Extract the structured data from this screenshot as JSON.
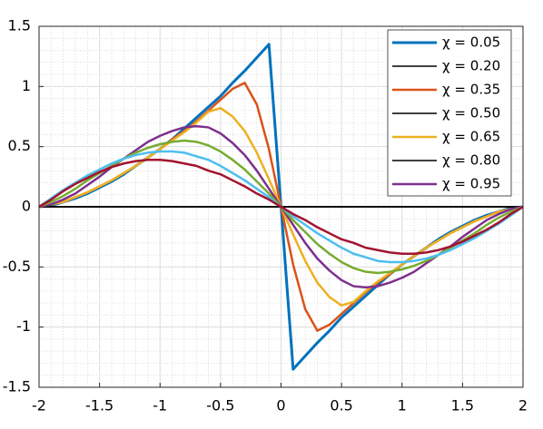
{
  "chart_data": {
    "type": "line",
    "x": [
      -2,
      -1.9,
      -1.8,
      -1.7,
      -1.6,
      -1.5,
      -1.4,
      -1.3,
      -1.2,
      -1.1,
      -1,
      -0.9,
      -0.8,
      -0.7,
      -0.6,
      -0.5,
      -0.4,
      -0.3,
      -0.2,
      -0.1,
      0,
      0.1,
      0.2,
      0.3,
      0.4,
      0.5,
      0.6,
      0.7,
      0.8,
      0.9,
      1,
      1.1,
      1.2,
      1.3,
      1.4,
      1.5,
      1.6,
      1.7,
      1.8,
      1.9,
      2
    ],
    "series": [
      {
        "name": "χ = 0.05",
        "color": "#0072BD",
        "width": 3,
        "values": [
          0,
          0.01,
          0.04,
          0.07,
          0.11,
          0.16,
          0.21,
          0.27,
          0.34,
          0.41,
          0.48,
          0.56,
          0.65,
          0.74,
          0.83,
          0.92,
          1.03,
          1.13,
          1.24,
          1.35,
          0,
          -1.35,
          -1.24,
          -1.13,
          -1.03,
          -0.92,
          -0.83,
          -0.74,
          -0.65,
          -0.56,
          -0.48,
          -0.41,
          -0.34,
          -0.27,
          -0.21,
          -0.16,
          -0.11,
          -0.07,
          -0.04,
          -0.01,
          0
        ]
      },
      {
        "name": "χ = 0.20",
        "color": "#000000",
        "width": 1.5,
        "values": [
          0,
          0,
          0,
          0,
          0,
          0,
          0,
          0,
          0,
          0,
          0,
          0,
          0,
          0,
          0,
          0,
          0,
          0,
          0,
          0,
          0,
          0,
          0,
          0,
          0,
          0,
          0,
          0,
          0,
          0,
          0,
          0,
          0,
          0,
          0,
          0,
          0,
          0,
          0,
          0,
          0
        ]
      },
      {
        "name": "χ = 0.35",
        "color": "#D95319",
        "width": 2.5,
        "values": [
          0,
          0.02,
          0.04,
          0.08,
          0.12,
          0.17,
          0.22,
          0.28,
          0.34,
          0.41,
          0.48,
          0.56,
          0.63,
          0.71,
          0.8,
          0.89,
          0.98,
          1.03,
          0.85,
          0.48,
          0,
          -0.48,
          -0.85,
          -1.03,
          -0.98,
          -0.89,
          -0.8,
          -0.71,
          -0.63,
          -0.56,
          -0.48,
          -0.41,
          -0.34,
          -0.28,
          -0.22,
          -0.17,
          -0.12,
          -0.08,
          -0.04,
          -0.02,
          0
        ]
      },
      {
        "name": "χ = 0.50",
        "color": "#000000",
        "width": 1.5,
        "values": [
          0,
          0,
          0,
          0,
          0,
          0,
          0,
          0,
          0,
          0,
          0,
          0,
          0,
          0,
          0,
          0,
          0,
          0,
          0,
          0,
          0,
          0,
          0,
          0,
          0,
          0,
          0,
          0,
          0,
          0,
          0,
          0,
          0,
          0,
          0,
          0,
          0,
          0,
          0,
          0,
          0
        ]
      },
      {
        "name": "χ = 0.65",
        "color": "#EDB120",
        "width": 2.5,
        "values": [
          0,
          0.02,
          0.04,
          0.08,
          0.12,
          0.17,
          0.22,
          0.28,
          0.34,
          0.41,
          0.48,
          0.55,
          0.62,
          0.7,
          0.79,
          0.82,
          0.75,
          0.63,
          0.45,
          0.23,
          0,
          -0.23,
          -0.45,
          -0.63,
          -0.75,
          -0.82,
          -0.79,
          -0.7,
          -0.62,
          -0.55,
          -0.48,
          -0.41,
          -0.34,
          -0.28,
          -0.22,
          -0.17,
          -0.12,
          -0.08,
          -0.04,
          -0.02,
          0
        ]
      },
      {
        "name": "χ = 0.80",
        "color": "#000000",
        "width": 1.5,
        "values": [
          0,
          0,
          0,
          0,
          0,
          0,
          0,
          0,
          0,
          0,
          0,
          0,
          0,
          0,
          0,
          0,
          0,
          0,
          0,
          0,
          0,
          0,
          0,
          0,
          0,
          0,
          0,
          0,
          0,
          0,
          0,
          0,
          0,
          0,
          0,
          0,
          0,
          0,
          0,
          0,
          0
        ]
      },
      {
        "name": "χ = 0.95",
        "color": "#7E2F8E",
        "width": 2.5,
        "values": [
          0,
          0.02,
          0.06,
          0.11,
          0.18,
          0.25,
          0.33,
          0.4,
          0.47,
          0.54,
          0.59,
          0.63,
          0.66,
          0.67,
          0.66,
          0.61,
          0.53,
          0.43,
          0.3,
          0.15,
          0,
          -0.15,
          -0.3,
          -0.43,
          -0.53,
          -0.61,
          -0.66,
          -0.67,
          -0.66,
          -0.63,
          -0.59,
          -0.54,
          -0.47,
          -0.4,
          -0.33,
          -0.25,
          -0.18,
          -0.11,
          -0.06,
          -0.02,
          0
        ]
      },
      {
        "color": "#77AC30",
        "width": 2.5,
        "values": [
          0,
          0.04,
          0.09,
          0.15,
          0.22,
          0.28,
          0.34,
          0.4,
          0.45,
          0.49,
          0.52,
          0.54,
          0.55,
          0.54,
          0.51,
          0.46,
          0.39,
          0.31,
          0.21,
          0.11,
          0,
          -0.11,
          -0.21,
          -0.31,
          -0.39,
          -0.46,
          -0.51,
          -0.54,
          -0.55,
          -0.54,
          -0.52,
          -0.49,
          -0.45,
          -0.4,
          -0.34,
          -0.28,
          -0.22,
          -0.15,
          -0.09,
          -0.04,
          0
        ]
      },
      {
        "color": "#4DBEEE",
        "width": 2.5,
        "values": [
          0,
          0.07,
          0.14,
          0.2,
          0.26,
          0.31,
          0.36,
          0.4,
          0.43,
          0.45,
          0.46,
          0.46,
          0.45,
          0.42,
          0.39,
          0.34,
          0.28,
          0.22,
          0.15,
          0.08,
          0,
          -0.08,
          -0.15,
          -0.22,
          -0.28,
          -0.34,
          -0.39,
          -0.42,
          -0.45,
          -0.46,
          -0.46,
          -0.45,
          -0.43,
          -0.4,
          -0.36,
          -0.31,
          -0.26,
          -0.2,
          -0.14,
          -0.07,
          0
        ]
      },
      {
        "color": "#A2142F",
        "width": 2.5,
        "values": [
          0,
          0.06,
          0.13,
          0.19,
          0.24,
          0.29,
          0.33,
          0.36,
          0.38,
          0.39,
          0.39,
          0.38,
          0.36,
          0.34,
          0.3,
          0.27,
          0.22,
          0.17,
          0.11,
          0.06,
          0,
          -0.06,
          -0.11,
          -0.17,
          -0.22,
          -0.27,
          -0.3,
          -0.34,
          -0.36,
          -0.38,
          -0.39,
          -0.39,
          -0.38,
          -0.36,
          -0.33,
          -0.29,
          -0.24,
          -0.19,
          -0.13,
          -0.06,
          0
        ]
      }
    ],
    "xlim": [
      -2,
      2
    ],
    "xticks": [
      -2,
      -1.5,
      -1,
      -0.5,
      0,
      0.5,
      1,
      1.5,
      2
    ],
    "ylim": [
      -1.5,
      1.5
    ],
    "yticks": [
      -1.5,
      -1,
      -0.5,
      0,
      0.5,
      1,
      1.5
    ],
    "grid": true,
    "minor_grid": true,
    "legend": "northeast"
  }
}
